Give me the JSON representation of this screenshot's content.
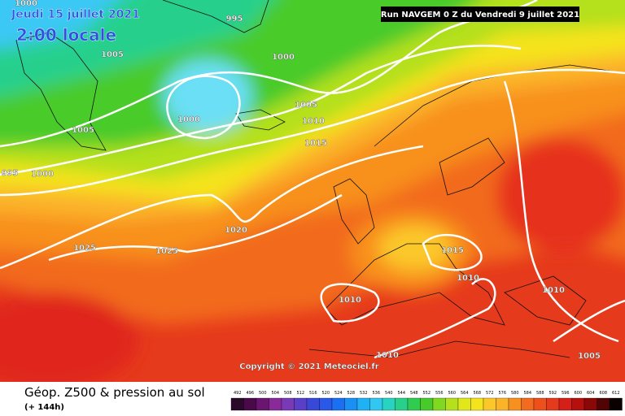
{
  "header": {
    "date": "Jeudi 15 juillet 2021",
    "time": "2:00 locale",
    "run": "Run NAVGEM 0 Z du Vendredi 9 juillet 2021"
  },
  "isobars": {
    "labels": [
      1000,
      995,
      1005,
      1000,
      1000,
      1005,
      1010,
      1015,
      1005,
      995,
      1000,
      1020,
      1025,
      1025,
      1015,
      1010,
      1010,
      1010,
      1010,
      1005
    ]
  },
  "copyright": "Copyright © 2021 Meteociel.fr",
  "footer": {
    "title": "Géop. Z500 & pression au sol",
    "lead": "(+ 144h)"
  },
  "legend": {
    "ticks": [
      492,
      496,
      500,
      504,
      508,
      512,
      516,
      520,
      524,
      528,
      532,
      536,
      540,
      544,
      548,
      552,
      556,
      560,
      564,
      568,
      572,
      576,
      580,
      584,
      588,
      592,
      596,
      600,
      604,
      608,
      612
    ],
    "colors": [
      "#2a0a2a",
      "#4a0a4a",
      "#6a1670",
      "#8a2a9a",
      "#7a3ab8",
      "#5a40c8",
      "#3a48d8",
      "#2a58e8",
      "#1a70f0",
      "#1a90f4",
      "#20b0f4",
      "#30c8f0",
      "#28d4c0",
      "#28d08c",
      "#30cc50",
      "#48cb2a",
      "#80d820",
      "#b4e01c",
      "#e0e81c",
      "#f5e31e",
      "#fbc82a",
      "#fbb32a",
      "#f8901f",
      "#f26b1e",
      "#ee501c",
      "#e63a1c",
      "#d42018",
      "#b41010",
      "#8a0808",
      "#500404",
      "#0a0000"
    ]
  }
}
